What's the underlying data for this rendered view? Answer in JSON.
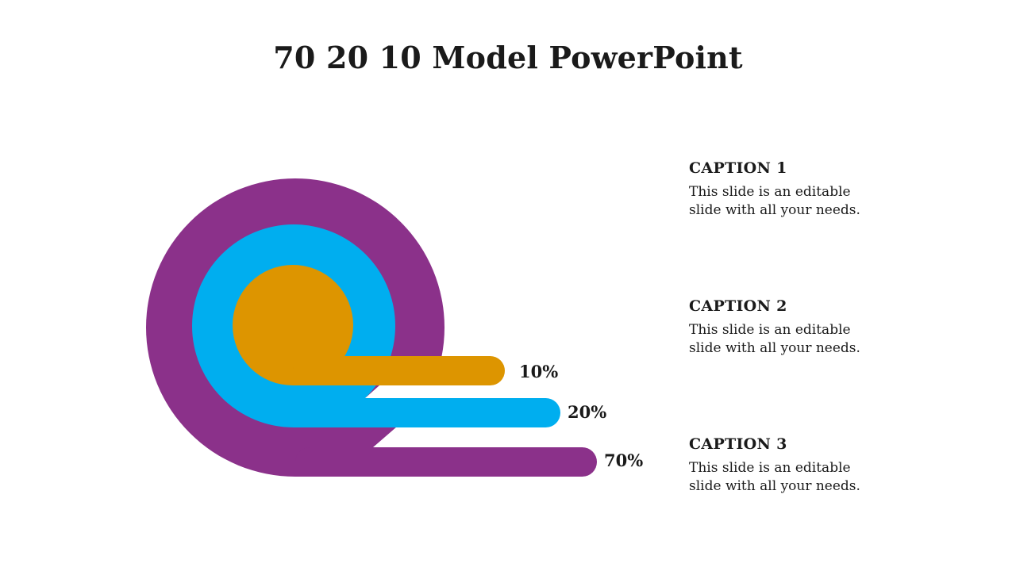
{
  "title": "70 20 10 Model PowerPoint",
  "diagram": {
    "rings": [
      {
        "label": "70%",
        "value": 70,
        "color": "#8B318A"
      },
      {
        "label": "20%",
        "value": 20,
        "color": "#00AEEF"
      },
      {
        "label": "10%",
        "value": 10,
        "color": "#DD9500"
      }
    ]
  },
  "captions": [
    {
      "title": "CAPTION 1",
      "text": "This slide is an editable slide with all your needs."
    },
    {
      "title": "CAPTION 2",
      "text": "This slide is an editable slide with all your needs."
    },
    {
      "title": "CAPTION 3",
      "text": "This slide is an editable slide with all your needs."
    }
  ]
}
